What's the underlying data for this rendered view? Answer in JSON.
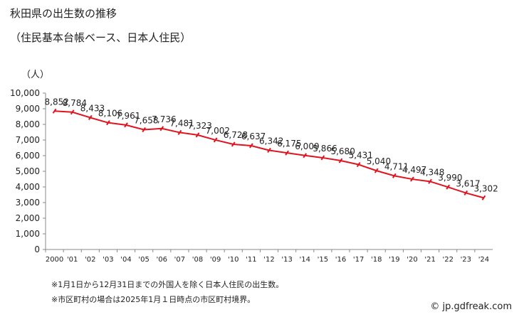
{
  "chart_data": {
    "type": "line",
    "title": "秋田県の出生数の推移",
    "subtitle": "（住民基本台帳ベース、日本人住民）",
    "ylabel": "（人）",
    "ylim": [
      0,
      10000
    ],
    "yticks": [
      "0",
      "1,000",
      "2,000",
      "3,000",
      "4,000",
      "5,000",
      "6,000",
      "7,000",
      "8,000",
      "9,000",
      "10,000"
    ],
    "categories": [
      "2000",
      "'01",
      "'02",
      "'03",
      "'04",
      "'05",
      "'06",
      "'07",
      "'08",
      "'09",
      "'10",
      "'11",
      "'12",
      "'13",
      "'14",
      "'15",
      "'16",
      "'17",
      "'18",
      "'19",
      "'20",
      "'21",
      "'22",
      "'23",
      "'24"
    ],
    "values": [
      8852,
      8784,
      8433,
      8106,
      7961,
      7658,
      7736,
      7481,
      7323,
      7002,
      6728,
      6637,
      6342,
      6175,
      6009,
      5866,
      5680,
      5431,
      5040,
      4711,
      4497,
      4348,
      3990,
      3617,
      3302
    ],
    "labels": [
      "8,852",
      "8,784",
      "8,433",
      "8,106",
      "7,961",
      "7,658",
      "7,736",
      "7,481",
      "7,323",
      "7,002",
      "6,728",
      "6,637",
      "6,342",
      "6,175",
      "6,009",
      "5,866",
      "5,680",
      "5,431",
      "5,040",
      "4,711",
      "4,497",
      "4,348",
      "3,990",
      "3,617",
      "3,302"
    ],
    "color": "#e0141e",
    "grid": false
  },
  "notes": [
    "※1月1日から12月31日までの外国人を除く日本人住民の出生数。",
    "※市区町村の場合は2025年1月１日時点の市区町村境界。"
  ],
  "credit": "© jp.gdfreak.com"
}
